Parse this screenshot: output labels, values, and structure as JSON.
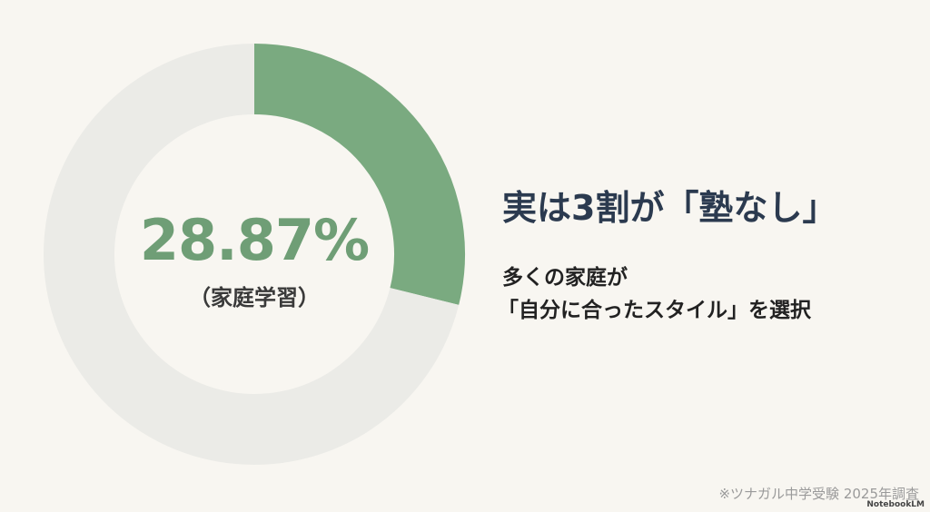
{
  "chart_data": {
    "type": "pie",
    "variant": "donut",
    "values": [
      28.87,
      71.13
    ],
    "categories": [
      "家庭学習",
      ""
    ],
    "colors": [
      "#7aaa80",
      "#ebebe7"
    ],
    "center_value": "28.87%",
    "center_label": "（家庭学習）"
  },
  "text": {
    "headline": "実は3割が「塾なし」",
    "sub_line1": "多くの家庭が",
    "sub_line2": "「自分に合ったスタイル」を選択",
    "source": "※ツナガル中学受験 2025年調査",
    "brand": "NotebookLM"
  }
}
